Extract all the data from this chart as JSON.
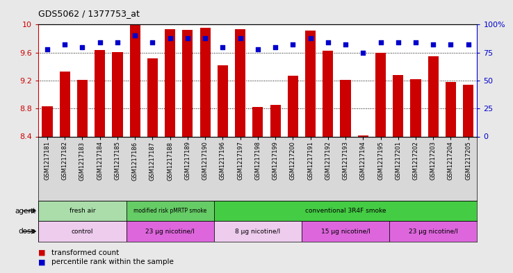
{
  "title": "GDS5062 / 1377753_at",
  "samples": [
    "GSM1217181",
    "GSM1217182",
    "GSM1217183",
    "GSM1217184",
    "GSM1217185",
    "GSM1217186",
    "GSM1217187",
    "GSM1217188",
    "GSM1217189",
    "GSM1217190",
    "GSM1217196",
    "GSM1217197",
    "GSM1217198",
    "GSM1217199",
    "GSM1217200",
    "GSM1217191",
    "GSM1217192",
    "GSM1217193",
    "GSM1217194",
    "GSM1217195",
    "GSM1217201",
    "GSM1217202",
    "GSM1217203",
    "GSM1217204",
    "GSM1217205"
  ],
  "bar_values": [
    8.83,
    9.33,
    9.21,
    9.64,
    9.61,
    10.0,
    9.52,
    9.93,
    9.92,
    9.95,
    9.42,
    9.93,
    8.82,
    8.85,
    9.27,
    9.91,
    9.63,
    9.21,
    8.41,
    9.6,
    9.28,
    9.22,
    9.55,
    9.18,
    9.14
  ],
  "percentile_values": [
    78,
    82,
    80,
    84,
    84,
    90,
    84,
    88,
    88,
    88,
    80,
    88,
    78,
    80,
    82,
    88,
    84,
    82,
    75,
    84,
    84,
    84,
    82,
    82,
    82
  ],
  "ymin": 8.4,
  "ymax": 10.0,
  "yticks": [
    8.4,
    8.8,
    9.2,
    9.6,
    10.0
  ],
  "ytick_labels": [
    "8.4",
    "8.8",
    "9.2",
    "9.6",
    "10"
  ],
  "right_yticks": [
    0,
    25,
    50,
    75,
    100
  ],
  "right_ytick_labels": [
    "0",
    "25",
    "50",
    "75",
    "100%"
  ],
  "bar_color": "#cc0000",
  "dot_color": "#0000cc",
  "agent_groups": [
    {
      "label": "fresh air",
      "start": 0,
      "end": 5,
      "color": "#aaddaa"
    },
    {
      "label": "modified risk pMRTP smoke",
      "start": 5,
      "end": 10,
      "color": "#66cc66"
    },
    {
      "label": "conventional 3R4F smoke",
      "start": 10,
      "end": 25,
      "color": "#44cc44"
    }
  ],
  "dose_groups": [
    {
      "label": "control",
      "start": 0,
      "end": 5,
      "color": "#eeccee"
    },
    {
      "label": "23 μg nicotine/l",
      "start": 5,
      "end": 10,
      "color": "#dd66dd"
    },
    {
      "label": "8 μg nicotine/l",
      "start": 10,
      "end": 15,
      "color": "#eeccee"
    },
    {
      "label": "15 μg nicotine/l",
      "start": 15,
      "end": 20,
      "color": "#dd66dd"
    },
    {
      "label": "23 μg nicotine/l",
      "start": 20,
      "end": 25,
      "color": "#dd66dd"
    }
  ],
  "legend_items": [
    {
      "label": "transformed count",
      "color": "#cc0000"
    },
    {
      "label": "percentile rank within the sample",
      "color": "#0000cc"
    }
  ],
  "fig_bg": "#e8e8e8",
  "plot_bg": "#ffffff",
  "xtick_bg": "#d8d8d8"
}
